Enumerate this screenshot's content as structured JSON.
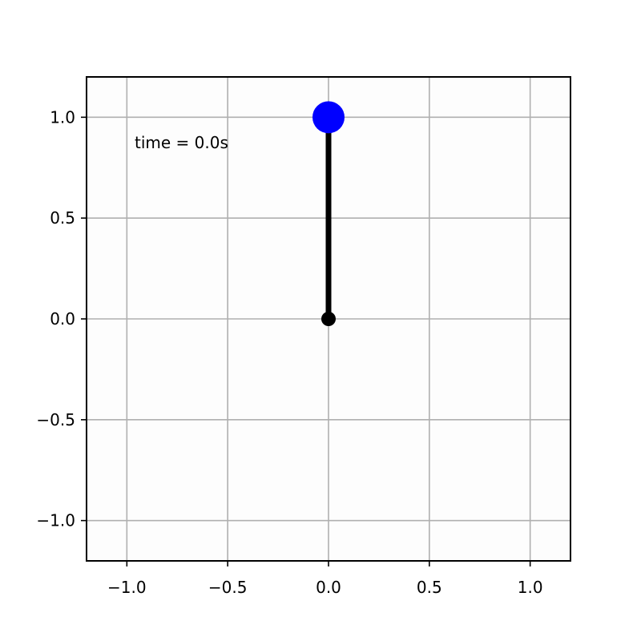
{
  "chart_data": {
    "type": "line",
    "title": "",
    "xlabel": "",
    "ylabel": "",
    "xlim": [
      -1.2,
      1.2
    ],
    "ylim": [
      -1.2,
      1.2
    ],
    "grid": true,
    "xticks": [
      -1.0,
      -0.5,
      0.0,
      0.5,
      1.0
    ],
    "yticks": [
      -1.0,
      -0.5,
      0.0,
      0.5,
      1.0
    ],
    "xtick_labels": [
      "−1.0",
      "−0.5",
      "0.0",
      "0.5",
      "1.0"
    ],
    "ytick_labels": [
      "−1.0",
      "−0.5",
      "0.0",
      "0.5",
      "1.0"
    ],
    "annotation": "time = 0.0s",
    "series": [
      {
        "x": [
          0.0,
          0.0
        ],
        "y": [
          0.0,
          1.0
        ],
        "color": "#000000",
        "marker": "pivot"
      }
    ],
    "bob": {
      "x": 0.0,
      "y": 1.0,
      "color": "#0000ff"
    },
    "pivot": {
      "x": 0.0,
      "y": 0.0,
      "color": "#000000"
    }
  },
  "colors": {
    "background": "#ffffff",
    "axes_face": "#fdfdfd",
    "grid": "#b0b0b0",
    "spine": "#000000",
    "rod": "#000000",
    "bob": "#0000ff"
  }
}
